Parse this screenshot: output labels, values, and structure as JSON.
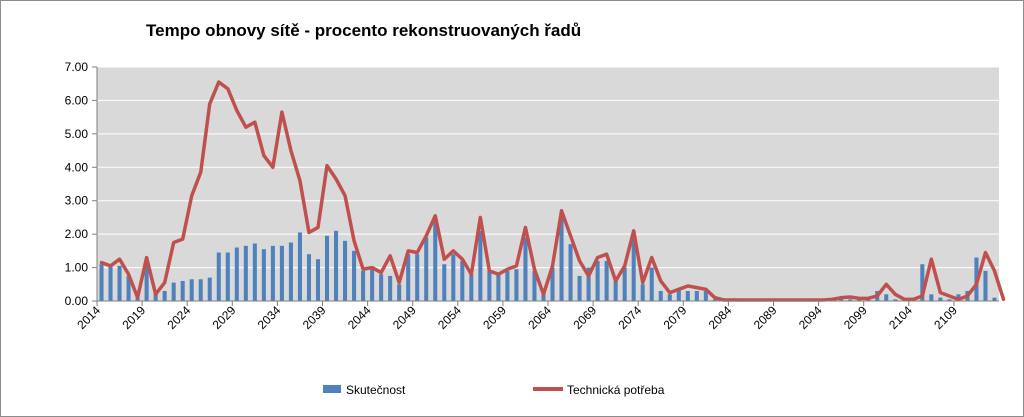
{
  "chart_data": {
    "type": "bar",
    "title": "Tempo obnovy sítě - procento rekonstruovaných řadů",
    "xlabel": "",
    "ylabel": "",
    "ylim": [
      0,
      7
    ],
    "yticks": [
      "0.00",
      "1.00",
      "2.00",
      "3.00",
      "4.00",
      "5.00",
      "6.00",
      "7.00"
    ],
    "x_start": 2014,
    "x_end": 2113,
    "xtick_labels": [
      "2014",
      "2019",
      "2024",
      "2029",
      "2034",
      "2039",
      "2044",
      "2049",
      "2054",
      "2059",
      "2064",
      "2069",
      "2074",
      "2079",
      "2084",
      "2089",
      "2094",
      "2099",
      "2104",
      "2109"
    ],
    "grid": true,
    "legend_position": "bottom",
    "series": [
      {
        "name": "Skutečnost",
        "type": "bar",
        "color": "#4f81bd",
        "values": [
          1.1,
          1.1,
          1.05,
          0.75,
          0.1,
          1.2,
          0.3,
          0.3,
          0.55,
          0.6,
          0.65,
          0.65,
          0.7,
          1.45,
          1.45,
          1.6,
          1.65,
          1.72,
          1.55,
          1.65,
          1.65,
          1.75,
          2.05,
          1.4,
          1.25,
          1.95,
          2.1,
          1.8,
          1.5,
          0.9,
          0.95,
          0.8,
          0.75,
          0.5,
          1.4,
          1.4,
          1.9,
          2.4,
          1.1,
          1.4,
          1.2,
          0.8,
          2.1,
          0.9,
          0.8,
          0.9,
          0.95,
          1.9,
          0.9,
          0.2,
          1.0,
          2.5,
          1.7,
          0.75,
          1.0,
          1.2,
          1.2,
          0.6,
          1.0,
          1.9,
          0.5,
          1.0,
          0.3,
          0.2,
          0.35,
          0.3,
          0.3,
          0.3,
          0.05,
          0.02,
          0.02,
          0.02,
          0.02,
          0.02,
          0.02,
          0.02,
          0.02,
          0.02,
          0.02,
          0.02,
          0.02,
          0.05,
          0.08,
          0.05,
          0.05,
          0.05,
          0.3,
          0.2,
          0.05,
          0.05,
          0.1,
          1.1,
          0.2,
          0.1,
          0.05,
          0.2,
          0.3,
          1.3,
          0.9,
          0.1
        ]
      },
      {
        "name": "Technická potřeba",
        "type": "line",
        "color": "#c0504d",
        "values": [
          1.15,
          1.05,
          1.25,
          0.8,
          0.1,
          1.3,
          0.2,
          0.55,
          1.75,
          1.85,
          3.15,
          3.85,
          5.9,
          6.55,
          6.35,
          5.7,
          5.2,
          5.35,
          4.35,
          4.0,
          5.65,
          4.5,
          3.6,
          2.05,
          2.2,
          4.05,
          3.65,
          3.15,
          1.8,
          0.95,
          1.0,
          0.85,
          1.35,
          0.55,
          1.5,
          1.45,
          1.95,
          2.55,
          1.25,
          1.5,
          1.25,
          0.8,
          2.5,
          0.9,
          0.8,
          0.95,
          1.05,
          2.2,
          0.95,
          0.2,
          1.05,
          2.7,
          1.95,
          1.2,
          0.75,
          1.3,
          1.4,
          0.6,
          1.05,
          2.1,
          0.55,
          1.3,
          0.6,
          0.25,
          0.35,
          0.45,
          0.4,
          0.35,
          0.1,
          0.03,
          0.03,
          0.03,
          0.03,
          0.03,
          0.03,
          0.03,
          0.03,
          0.03,
          0.03,
          0.03,
          0.03,
          0.05,
          0.1,
          0.12,
          0.08,
          0.08,
          0.15,
          0.5,
          0.2,
          0.05,
          0.05,
          0.15,
          1.25,
          0.25,
          0.15,
          0.05,
          0.15,
          0.5,
          1.45,
          0.9,
          0.05
        ]
      }
    ]
  }
}
